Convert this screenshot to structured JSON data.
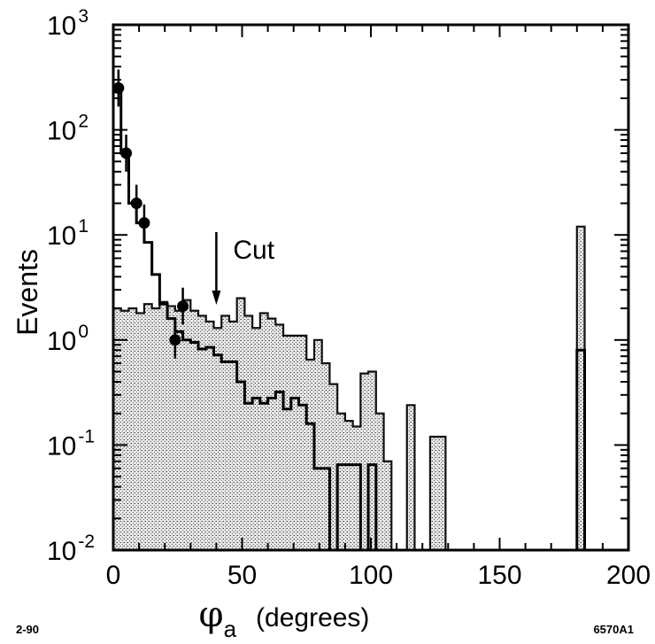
{
  "chart_data": {
    "type": "bar",
    "title": "",
    "ylabel": "Events",
    "xlabel": {
      "symbol": "φ",
      "subscript": "a",
      "unit": "(degrees)"
    },
    "xlim": [
      0,
      200
    ],
    "ylim": [
      0.01,
      1000
    ],
    "yscale": "log",
    "grid": false,
    "x_ticks": [
      0,
      50,
      100,
      150,
      200
    ],
    "x_tick_labels": [
      "0",
      "50",
      "100",
      "150",
      "200"
    ],
    "y_ticks": [
      0.01,
      0.1,
      1,
      10,
      100,
      1000
    ],
    "y_tick_labels": [
      {
        "base": "10",
        "exp": "-2"
      },
      {
        "base": "10",
        "exp": "-1"
      },
      {
        "base": "10",
        "exp": "0"
      },
      {
        "base": "10",
        "exp": "1"
      },
      {
        "base": "10",
        "exp": "2"
      },
      {
        "base": "10",
        "exp": "3"
      }
    ],
    "bin_edges": [
      0,
      3,
      6,
      9,
      12,
      15,
      18,
      21,
      24,
      27,
      30,
      33,
      36,
      39,
      42,
      45,
      48,
      51,
      54,
      57,
      60,
      63,
      66,
      69,
      72,
      75,
      78,
      81,
      84,
      87,
      90,
      93,
      96,
      99,
      102,
      105,
      108,
      111,
      114,
      117,
      120,
      123,
      126,
      129,
      132,
      135,
      138,
      141,
      144,
      147,
      150,
      153,
      156,
      159,
      162,
      165,
      168,
      171,
      174,
      177,
      180,
      183,
      186,
      189,
      192,
      195,
      198,
      200
    ],
    "series": [
      {
        "style": "shaded",
        "values": [
          2.0,
          1.9,
          2.0,
          1.8,
          2.2,
          2.0,
          2.3,
          2.1,
          1.9,
          2.4,
          1.9,
          1.7,
          1.5,
          1.3,
          1.7,
          1.5,
          2.5,
          1.7,
          1.3,
          1.8,
          1.6,
          1.4,
          1.1,
          1.1,
          1.1,
          0.65,
          1.0,
          0.6,
          0.38,
          0.2,
          0.17,
          0.15,
          0.48,
          0.5,
          0.2,
          0.07,
          0.01,
          0.01,
          0.24,
          0.01,
          0.01,
          0.12,
          0.12,
          0.01,
          0.01,
          0.01,
          0.01,
          0.01,
          0.01,
          0.01,
          0.01,
          0.01,
          0.01,
          0.01,
          0.01,
          0.01,
          0.01,
          0.01,
          0.01,
          0.01,
          12,
          0.01,
          0.01,
          0.01,
          0.01,
          0.01,
          0.01
        ]
      },
      {
        "style": "outline",
        "values": [
          230,
          60,
          20,
          13,
          8.5,
          4.2,
          2.2,
          1.6,
          1.2,
          1.0,
          0.95,
          0.82,
          0.85,
          0.72,
          0.62,
          0.62,
          0.4,
          0.25,
          0.28,
          0.25,
          0.28,
          0.32,
          0.22,
          0.28,
          0.24,
          0.16,
          0.06,
          0.06,
          0.01,
          0.065,
          0.065,
          0.065,
          0.01,
          0.065,
          0.01,
          0.01,
          0.01,
          0.01,
          0.01,
          0.01,
          0.01,
          0.01,
          0.01,
          0.01,
          0.01,
          0.01,
          0.01,
          0.01,
          0.01,
          0.01,
          0.01,
          0.01,
          0.01,
          0.01,
          0.01,
          0.01,
          0.01,
          0.01,
          0.01,
          0.01,
          0.8,
          0.01,
          0.01,
          0.01,
          0.01,
          0.01,
          0.01
        ]
      }
    ],
    "points": [
      {
        "x": 2,
        "y": 250
      },
      {
        "x": 5,
        "y": 60
      },
      {
        "x": 9,
        "y": 20
      },
      {
        "x": 12,
        "y": 13
      },
      {
        "x": 24,
        "y": 1.0
      },
      {
        "x": 27,
        "y": 2.1
      }
    ],
    "annotations": [
      {
        "text": "Cut",
        "x": 40
      }
    ],
    "footer_left": "2-90",
    "footer_right": "6570A1"
  }
}
